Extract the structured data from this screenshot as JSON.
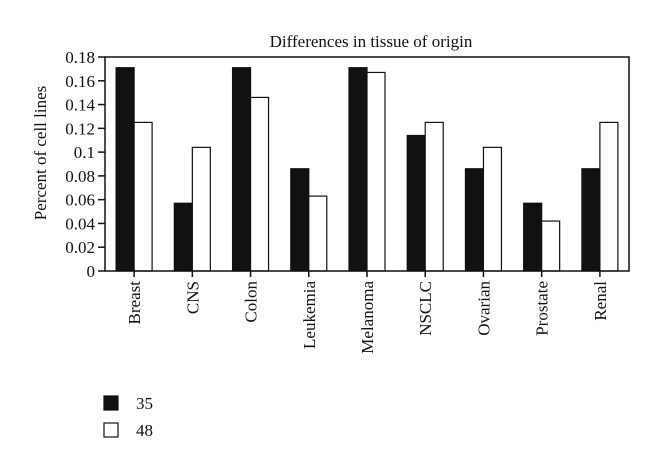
{
  "chart_data": {
    "type": "bar",
    "title": "Differences in tissue of origin",
    "xlabel": "",
    "ylabel": "Percent of cell lines",
    "ylim": [
      0,
      0.18
    ],
    "yticks": [
      "0",
      "0.02",
      "0.04",
      "0.06",
      "0.08",
      "0.1",
      "0.12",
      "0.14",
      "0.16",
      "0.18"
    ],
    "categories": [
      "Breast",
      "CNS",
      "Colon",
      "Leukemia",
      "Melanoma",
      "NSCLC",
      "Ovarian",
      "Prostate",
      "Renal"
    ],
    "series": [
      {
        "name": "35",
        "color": "#111111",
        "values": [
          0.171,
          0.057,
          0.171,
          0.086,
          0.171,
          0.114,
          0.086,
          0.057,
          0.086
        ]
      },
      {
        "name": "48",
        "color": "#ffffff",
        "values": [
          0.125,
          0.104,
          0.146,
          0.063,
          0.167,
          0.125,
          0.104,
          0.042,
          0.125
        ]
      }
    ],
    "grid": false,
    "legend": "bottom-left"
  }
}
